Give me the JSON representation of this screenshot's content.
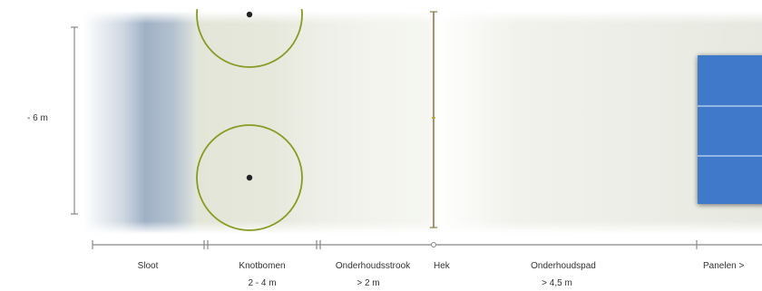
{
  "dimension": {
    "height_label": "- 6 m"
  },
  "zones": [
    {
      "name": "Sloot",
      "width": ""
    },
    {
      "name": "Knotbomen",
      "width": "2 - 4  m"
    },
    {
      "name": "Onderhoudsstrook",
      "width": "> 2 m"
    },
    {
      "name": "Hek",
      "width": ""
    },
    {
      "name": "Onderhoudspad",
      "width": "> 4,5 m"
    },
    {
      "name": "Panelen >",
      "width": ""
    }
  ],
  "colors": {
    "ditch": "#9aaec4",
    "tree_strip": "#e3e6d6",
    "path": "#e8eae0",
    "tree_circle": "#8a9a22",
    "fence": "#8f7c4a",
    "panel": "#3f79c9",
    "panel_line": "#c7dbf2",
    "scale": "#888888"
  }
}
